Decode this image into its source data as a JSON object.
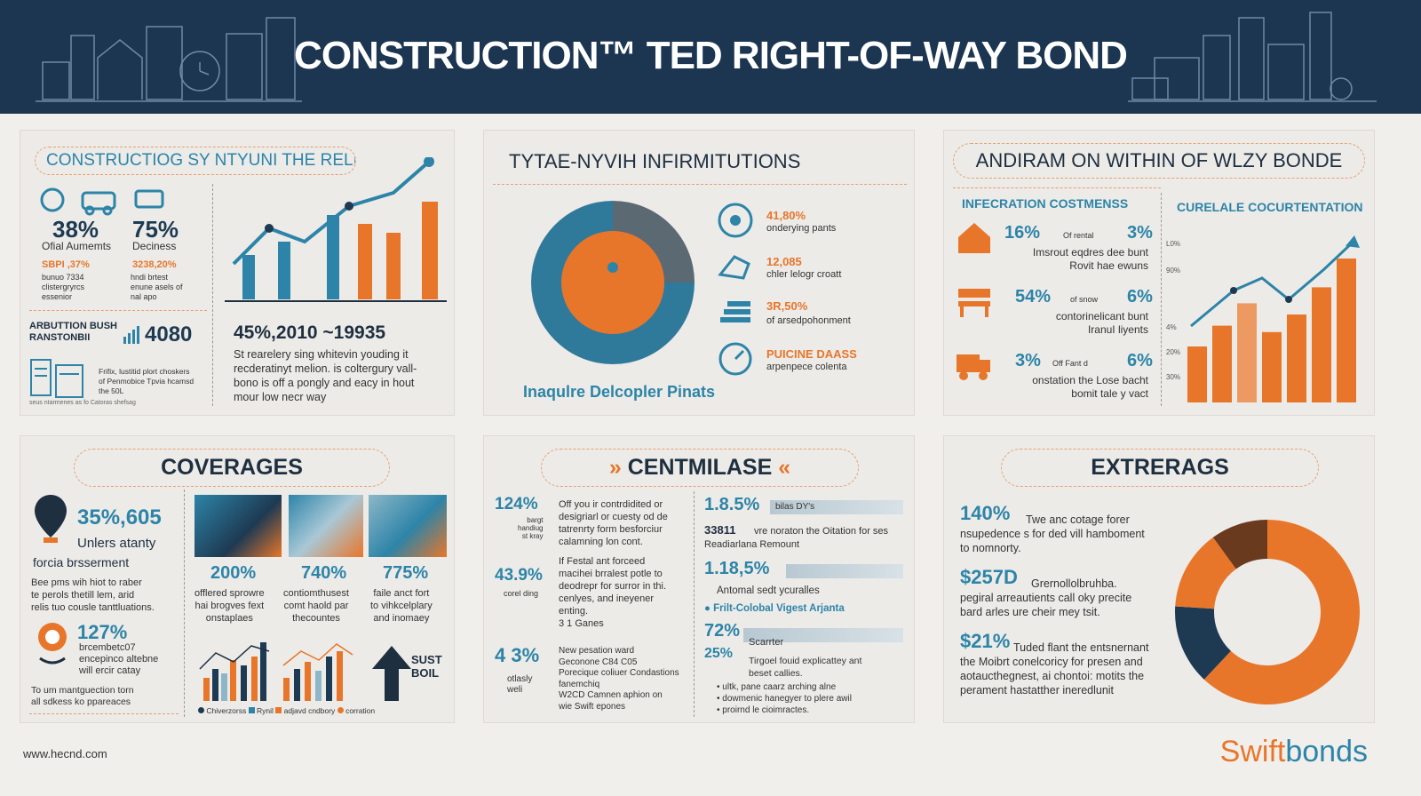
{
  "header": {
    "title": "CONSTRUCTION™ TED RIGHT-OF-WAY BOND"
  },
  "panel1": {
    "title": "CONSTRUCTIOG SY NTYUNI THE RELFT OF DECAD",
    "stat1": {
      "value": "38%",
      "label": "Ofial Aumemts",
      "orange": "SBPI ,37%",
      "text": "bunuo 7334\nclistergryrcs\nessenior"
    },
    "stat2": {
      "value": "75%",
      "label": "Deciness",
      "orange": "3238,20%",
      "text": "hndi brtest\nenune asels of\nnal apo"
    },
    "side_title": "ARBUTTION BUSH\nRANSTONBII",
    "side_value": "4080",
    "side_text": "Frifix, lustitid plort choskers\nof Penmobice Tpvia hcamsd\nthe 50L",
    "footer_text": "seus ntarmenes as fo Catoras shefsag",
    "headline": "45%,2010 ~19935",
    "body": "St rearelery sing whitevin youding it\nrecderatinyt melion. is coltergury vall-\nbono is off a pongly and eacy in hout\nmour low necr way"
  },
  "panel2": {
    "title": "TYTAE-NYVIH INFIRMITUTIONS",
    "items": [
      {
        "value": "41,80%",
        "label": "onderying pants"
      },
      {
        "value": "12,085",
        "label": "chler lelogr croatt"
      },
      {
        "value": "3R,50%",
        "label": "of arsedpohonment"
      },
      {
        "value": "PUICINE DAASS",
        "label": "arpenpece colenta"
      }
    ],
    "caption": "Inaqulre Delcopler Pinats",
    "donut": [
      {
        "value": 25,
        "color": "#5b6a72"
      },
      {
        "value": 75,
        "color": "#2f7a9a"
      }
    ]
  },
  "panel3": {
    "title": "ANDIRAM ON WITHIN OF WLZY BONDE",
    "sub_left": "INFECRATION COSTMENSS",
    "sub_right": "CURELALE COCURTENTATION",
    "rows": [
      {
        "pct": "16%",
        "mid": "Of rental",
        "pct2": "3%",
        "text": "Imsrout eqdres dee bunt\nRovit hae ewuns"
      },
      {
        "pct": "54%",
        "mid": "of snow",
        "pct2": "6%",
        "text": "contorinelicant bunt\nIranuI liyents"
      },
      {
        "pct": "3%",
        "mid": "Off Fant d",
        "pct2": "6%",
        "text": "onstation the Lose bacht\nbomit tale y vact"
      }
    ],
    "axis": [
      "L0%",
      "90%",
      "4%",
      "20%",
      "30%"
    ],
    "bars": [
      0.35,
      0.48,
      0.62,
      0.44,
      0.55,
      0.72,
      0.9
    ]
  },
  "panel4": {
    "title": "COVERAGES",
    "stat": "35%,605",
    "stat_label": "Unlers atanty",
    "sub": "forcia brsserment",
    "text": "Bee pms wih hiot to raber\nte perols thetill lem, arid\nrelis tuo cousle tanttluations.",
    "stat2": "127%",
    "stat2_label": "brcembetc07\nencepinco altebne\nwill ercir catay",
    "bottom_text": "To um mantguection torn\nall sdkess ko ppareaces",
    "cols": [
      {
        "pct": "200%",
        "text": "offlered sprowre\nhai brogves fext\nonstaplaes"
      },
      {
        "pct": "740%",
        "text": "contiomthusest\ncomt haold par\nthecountes"
      },
      {
        "pct": "775%",
        "text": "faile anct fort\nto vihkcelplary\nand inomaey"
      }
    ],
    "arrow_label": "SUST\nBOIL",
    "legend": [
      "Chiverzorss",
      "Rynil",
      "adjavd cndbory",
      "corration"
    ]
  },
  "panel5": {
    "title": "CENTMILASE",
    "left": [
      {
        "pct": "124%",
        "label": "bargt\nhandiug\nst kray",
        "text": "Off you ir contrdidited or\ndesigriarl or cuesty od de\ntatrenrty form besforciur\ncalamning lon cont."
      },
      {
        "pct": "43.9%",
        "label": "corel ding",
        "text": "If Festal ant forceed\nmacihei brralest potle to\ndeodrepr for surror in thi.\ncenlyes, and ineyener\nenting.\n3 1 Ganes"
      },
      {
        "pct": "4 3%",
        "label": "otlasly\nweli",
        "text": "New pesation ward\nGeconone C84 C05\nPorecique coliuer Condastions\nfanemchiq\nW2CD Camnen aphion on\nwie Swift epones"
      }
    ],
    "right": [
      {
        "pct": "1.8.5%",
        "tag": "bilas DY's",
        "value": "33811",
        "text": "vre noraton the Oitation for ses\nReadiarlana Remount"
      },
      {
        "pct": "1.18,5%",
        "text": "Antomal sedt ycuralles",
        "bullet": "Frilt-Colobal Vigest Arjanta"
      },
      {
        "pct": "72%",
        "label": "Scarrter",
        "extra": "25%",
        "text": "Tirgoel fouid explicattey ant\nbeset callies.",
        "bullets": [
          "ultk, pane caarz arching alne",
          "dowmenic hanegyer to plere awil",
          "proirnd le cioimractes."
        ]
      }
    ]
  },
  "panel6": {
    "title": "EXTRERAGS",
    "items": [
      {
        "pct": "140%",
        "text": "Twe anc cotage forer\nnsupedence s for ded vill hamboment\nto nomnorty."
      },
      {
        "pct": "$257D",
        "text": "Grernollolbruhba.\npegiral arreautients call oky precite\nbard arles ure cheir mey tsit."
      },
      {
        "pct": "$21%",
        "text": "Tuded flant the entsnernant\nthe Moibrt conelcoricy for presen and\naotaucthegnest, ai chontoi: motits the\nperament hastatther ineredlunit"
      }
    ],
    "donut": [
      {
        "value": 62,
        "color": "#e8762a"
      },
      {
        "value": 14,
        "color": "#1e3a52"
      },
      {
        "value": 14,
        "color": "#e8762a"
      },
      {
        "value": 10,
        "color": "#6a3a1e"
      }
    ]
  },
  "footer": {
    "url": "www.hecnd.com"
  },
  "logo": {
    "part1": "Swift",
    "part2": "bonds"
  }
}
